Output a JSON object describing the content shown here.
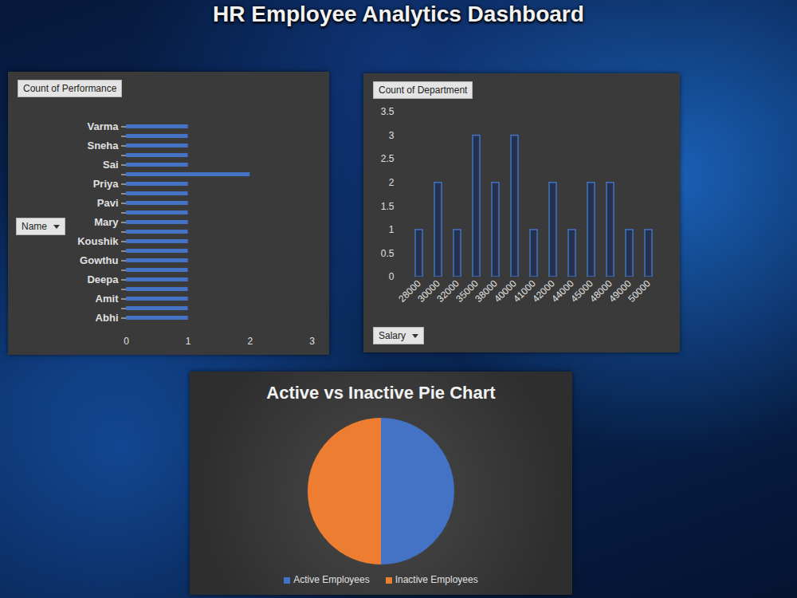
{
  "title": "HR Employee Analytics Dashboard",
  "chart_data": [
    {
      "type": "bar",
      "title": "Count of Performance",
      "y_label": "Name",
      "orientation": "horizontal",
      "categories": [
        "Varma",
        null,
        "Sneha",
        null,
        "Sai",
        null,
        "Priya",
        null,
        "Pavi",
        null,
        "Mary",
        null,
        "Koushik",
        null,
        "Gowthu",
        null,
        "Deepa",
        null,
        "Amit",
        null,
        "Abhi"
      ],
      "values": [
        1,
        1,
        1,
        1,
        1,
        2,
        1,
        1,
        1,
        1,
        1,
        1,
        1,
        1,
        1,
        1,
        1,
        1,
        1,
        1,
        1
      ],
      "color": "#4472c4",
      "xlim": [
        0,
        3
      ],
      "xticks": [
        0,
        1,
        2,
        3
      ]
    },
    {
      "type": "bar",
      "title": "Count of Department",
      "x_label": "Salary",
      "categories": [
        "28000",
        "30000",
        "32000",
        "35000",
        "38000",
        "40000",
        "41000",
        "42000",
        "44000",
        "45000",
        "48000",
        "49000",
        "50000"
      ],
      "values": [
        1,
        2,
        1,
        3,
        2,
        3,
        1,
        2,
        1,
        2,
        2,
        1,
        1
      ],
      "color": "#4472c4",
      "ylim": [
        0,
        3.5
      ],
      "yticks": [
        0,
        0.5,
        1,
        1.5,
        2,
        2.5,
        3,
        3.5
      ]
    },
    {
      "type": "pie",
      "title": "Active vs Inactive Pie Chart",
      "categories": [
        "Active Employees",
        "Inactive Employees"
      ],
      "values": [
        50,
        50
      ],
      "colors": [
        "#4472c4",
        "#ed7d31"
      ],
      "legend": "bottom"
    }
  ]
}
